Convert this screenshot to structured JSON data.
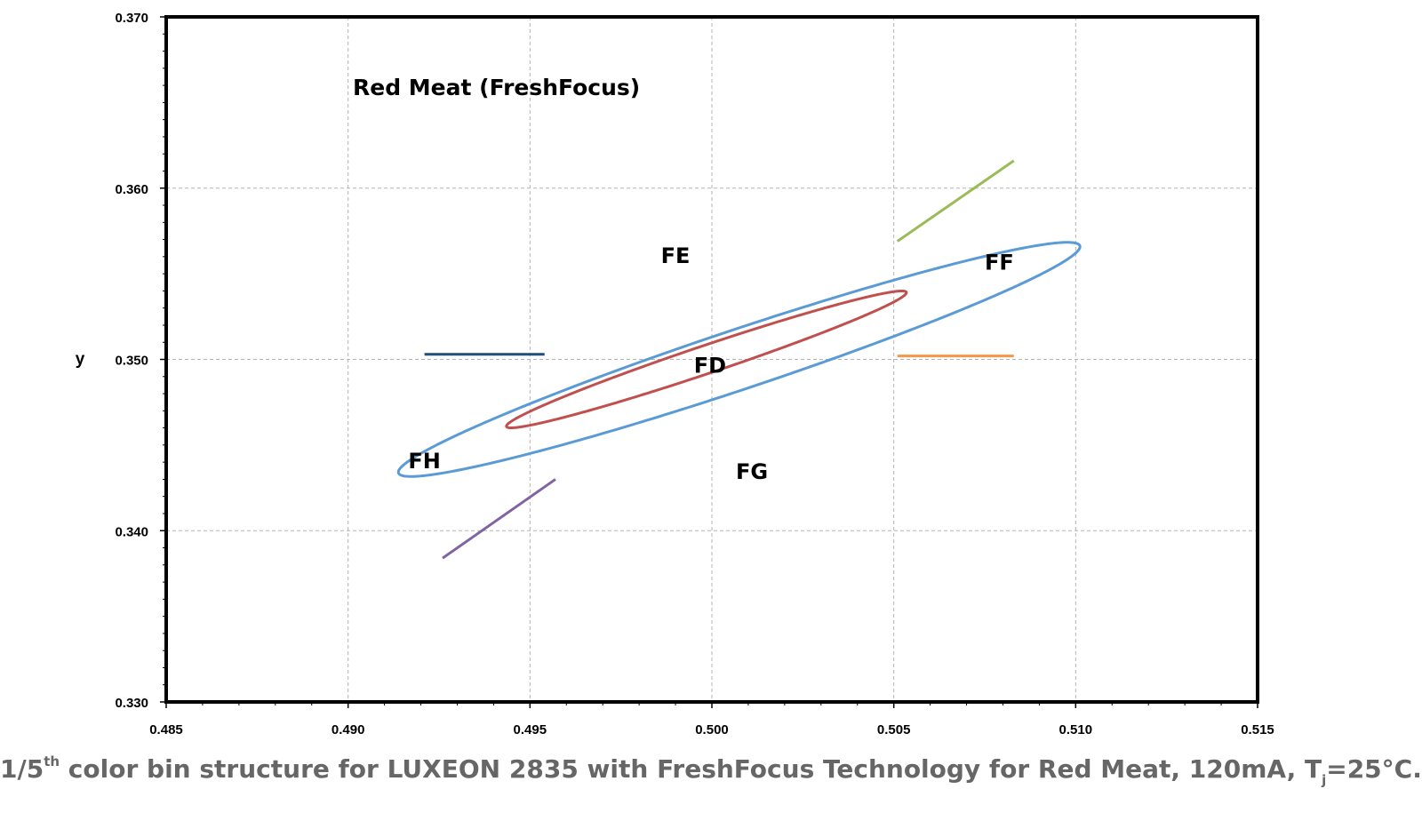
{
  "chart_data": {
    "type": "scatter",
    "title": "Red Meat (FreshFocus)",
    "xlabel": "",
    "ylabel": "y",
    "xlim": [
      0.485,
      0.515
    ],
    "ylim": [
      0.33,
      0.37
    ],
    "x_ticks": [
      "0.485",
      "0.490",
      "0.495",
      "0.500",
      "0.505",
      "0.510",
      "0.515"
    ],
    "y_ticks": [
      "0.330",
      "0.340",
      "0.350",
      "0.360",
      "0.370"
    ],
    "grid": true,
    "ellipses": [
      {
        "center": [
          0.50075,
          0.35
        ],
        "a": 0.0115,
        "b": 0.0015,
        "angle_deg": 35.8,
        "color": "#5b9bd5"
      },
      {
        "center": [
          0.49985,
          0.35
        ],
        "a": 0.00676,
        "b": 0.0007,
        "angle_deg": 35.8,
        "color": "#c0504d"
      }
    ],
    "bin_boundaries": [
      {
        "x1": 0.4921,
        "y1": 0.3503,
        "x2": 0.4954,
        "y2": 0.3503,
        "color": "#1f4e79"
      },
      {
        "x1": 0.5051,
        "y1": 0.3569,
        "x2": 0.5083,
        "y2": 0.3616,
        "color": "#9bbb59"
      },
      {
        "x1": 0.5051,
        "y1": 0.3502,
        "x2": 0.5083,
        "y2": 0.3502,
        "color": "#f79646"
      },
      {
        "x1": 0.4926,
        "y1": 0.3384,
        "x2": 0.4957,
        "y2": 0.343,
        "color": "#8064a2"
      }
    ],
    "bins": [
      {
        "label": "FD",
        "x": 0.49995,
        "y": 0.3497
      },
      {
        "label": "FE",
        "x": 0.499,
        "y": 0.3561
      },
      {
        "label": "FF",
        "x": 0.5079,
        "y": 0.3557
      },
      {
        "label": "FG",
        "x": 0.5011,
        "y": 0.3435
      },
      {
        "label": "FH",
        "x": 0.4921,
        "y": 0.3441
      }
    ]
  },
  "caption": {
    "prefix": "1/5",
    "sup": "th",
    "middle": " color bin structure for LUXEON 2835 with FreshFocus Technology for Red Meat, 120mA, T",
    "sub": "j",
    "suffix": "=25°C."
  }
}
